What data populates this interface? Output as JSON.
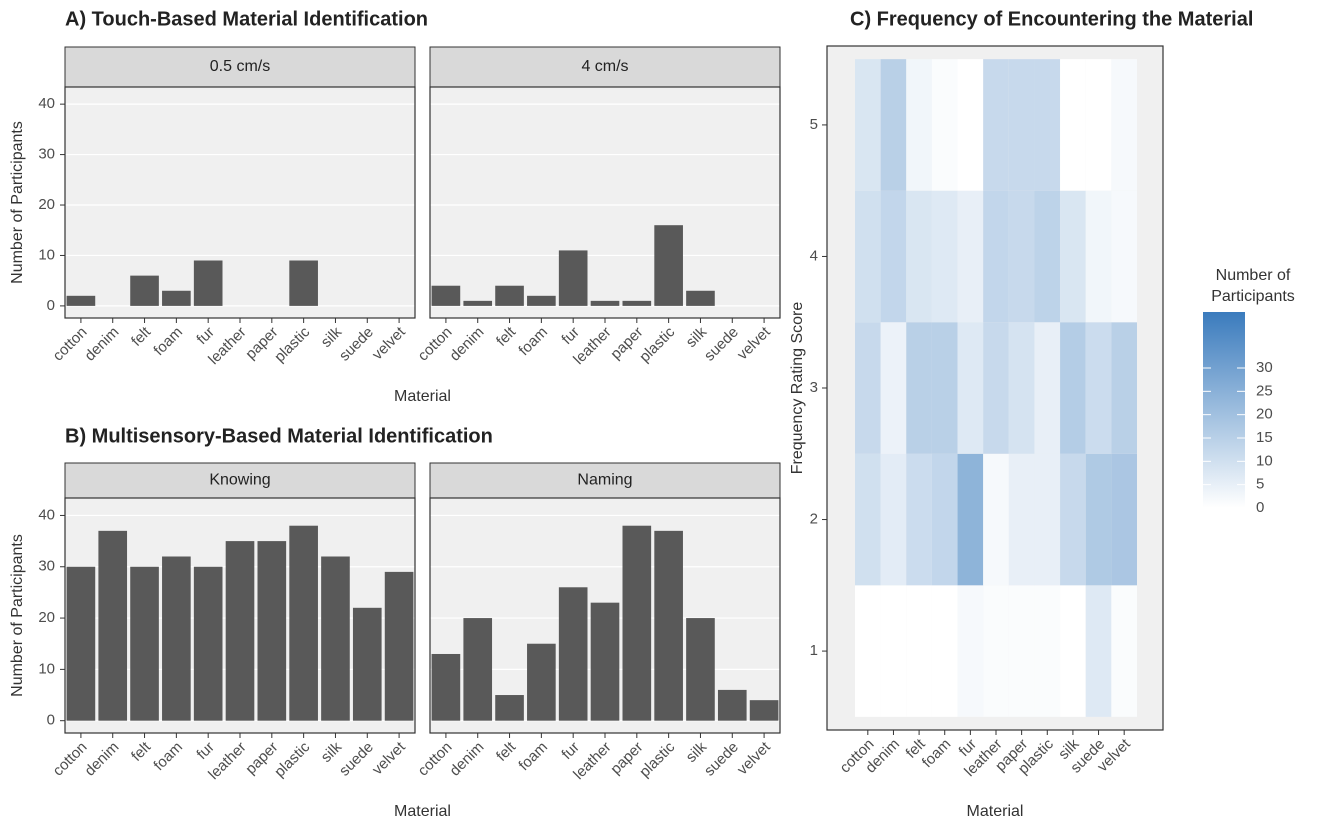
{
  "chart_data": [
    {
      "type": "bar",
      "title": "A) Touch-Based Material Identification",
      "x_label": "Material",
      "y_label": "Number of Participants",
      "categories": [
        "cotton",
        "denim",
        "felt",
        "foam",
        "fur",
        "leather",
        "paper",
        "plastic",
        "silk",
        "suede",
        "velvet"
      ],
      "facets": [
        {
          "name": "0.5 cm/s",
          "values": [
            2,
            0,
            6,
            3,
            9,
            0,
            0,
            9,
            0,
            0,
            0
          ]
        },
        {
          "name": "4 cm/s",
          "values": [
            4,
            1,
            4,
            2,
            11,
            1,
            1,
            16,
            3,
            0,
            0
          ]
        }
      ],
      "color": "#595959",
      "ylim": [
        -2.4,
        43.4
      ],
      "yticks": [
        0,
        10,
        20,
        30,
        40
      ],
      "grid": true
    },
    {
      "type": "bar",
      "title": "B) Multisensory-Based Material Identification",
      "x_label": "Material",
      "y_label": "Number of Participants",
      "categories": [
        "cotton",
        "denim",
        "felt",
        "foam",
        "fur",
        "leather",
        "paper",
        "plastic",
        "silk",
        "suede",
        "velvet"
      ],
      "facets": [
        {
          "name": "Knowing",
          "values": [
            30,
            37,
            30,
            32,
            30,
            35,
            35,
            38,
            32,
            22,
            29
          ]
        },
        {
          "name": "Naming",
          "values": [
            13,
            20,
            5,
            15,
            26,
            23,
            38,
            37,
            20,
            6,
            4
          ]
        }
      ],
      "color": "#595959",
      "ylim": [
        -2.4,
        43.4
      ],
      "yticks": [
        0,
        10,
        20,
        30,
        40
      ],
      "grid": true
    },
    {
      "type": "heatmap",
      "title": "C) Frequency of Encountering the Material",
      "x_label": "Material",
      "y_label": "Frequency Rating Score",
      "categories": [
        "cotton",
        "denim",
        "felt",
        "foam",
        "fur",
        "leather",
        "paper",
        "plastic",
        "silk",
        "suede",
        "velvet"
      ],
      "y": [
        1,
        2,
        3,
        4,
        5
      ],
      "ylim": [
        0.4,
        5.6
      ],
      "yticks": [
        1,
        2,
        3,
        4,
        5
      ],
      "values": [
        [
          0,
          0,
          0,
          0,
          2,
          1,
          1,
          1,
          0,
          7,
          1
        ],
        [
          10,
          6,
          11,
          13,
          24,
          2,
          5,
          5,
          12,
          17,
          18
        ],
        [
          12,
          4,
          15,
          15,
          7,
          12,
          9,
          5,
          16,
          11,
          15
        ],
        [
          10,
          13,
          8,
          7,
          5,
          13,
          12,
          14,
          8,
          3,
          2
        ],
        [
          8,
          15,
          3,
          1,
          0,
          12,
          12,
          12,
          0,
          0,
          2
        ]
      ],
      "legend_title": [
        "Number of",
        "Participants"
      ],
      "colorbar_lim": [
        0,
        42
      ],
      "colorbar_ticks": [
        0,
        5,
        10,
        15,
        20,
        25,
        30
      ],
      "low_color": "#ffffff",
      "high_color": "#3a7bbd"
    }
  ]
}
